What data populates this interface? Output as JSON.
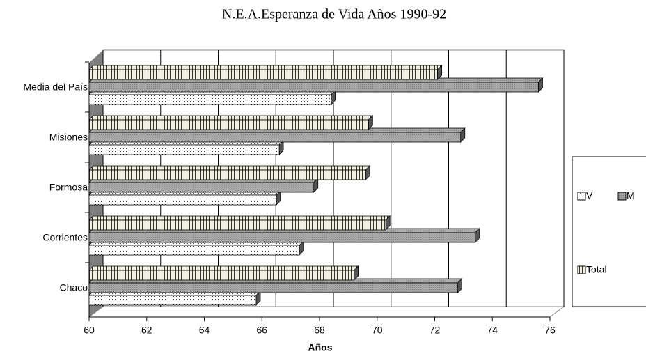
{
  "chart_data": {
    "type": "bar",
    "orientation": "horizontal",
    "title": "N.E.A.Esperanza de Vida        Años 1990-92",
    "x_label": "Años",
    "categories": [
      "Media del País",
      "Misiones",
      "Formosa",
      "Corrientes",
      "Chaco"
    ],
    "series": [
      {
        "name": "V",
        "color": "#ffffff",
        "values": [
          68.4,
          66.6,
          66.5,
          67.3,
          65.8
        ]
      },
      {
        "name": "M",
        "color": "#a6a6a6",
        "values": [
          75.6,
          72.9,
          67.8,
          73.4,
          72.8
        ]
      },
      {
        "name": "Total",
        "color": "#f2f0e0",
        "values": [
          72.1,
          69.7,
          69.6,
          70.3,
          69.2
        ]
      }
    ],
    "xlim": [
      60,
      76
    ],
    "xticks": [
      60,
      62,
      64,
      66,
      68,
      70,
      72,
      74,
      76
    ],
    "grid": true
  }
}
